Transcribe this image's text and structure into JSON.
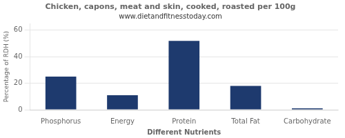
{
  "chart_data": {
    "type": "bar",
    "title": "Chicken, capons, meat and skin, cooked, roasted per 100g",
    "subtitle": "www.dietandfitnesstoday.com",
    "xlabel": "Different Nutrients",
    "ylabel": "Percentage of RDH (%)",
    "categories": [
      "Phosphorus",
      "Energy",
      "Protein",
      "Total Fat",
      "Carbohydrate"
    ],
    "values": [
      25,
      11,
      52,
      18,
      1
    ],
    "color": "#1e3a6e",
    "ylim": [
      0,
      65
    ],
    "yticks": [
      0,
      20,
      40,
      60
    ],
    "grid": true
  }
}
